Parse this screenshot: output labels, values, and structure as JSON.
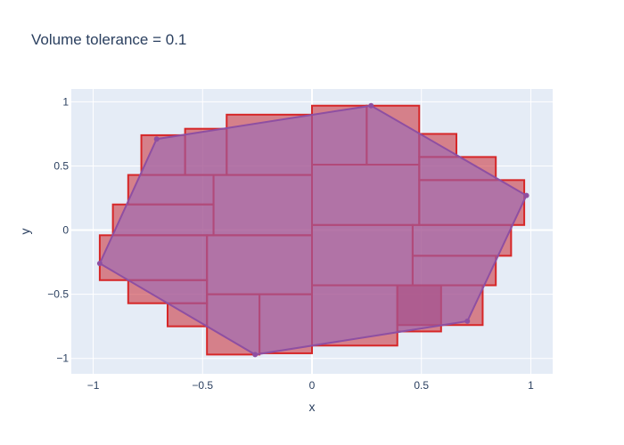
{
  "chart_data": {
    "type": "polygon-box-cover",
    "title": "Volume tolerance = 0.1",
    "xlabel": "x",
    "ylabel": "y",
    "xlim": [
      -1.1,
      1.1
    ],
    "ylim": [
      -1.12,
      1.1
    ],
    "xticks": [
      -1,
      -0.5,
      0,
      0.5,
      1
    ],
    "xtick_labels": [
      "−1",
      "−0.5",
      "0",
      "0.5",
      "1"
    ],
    "yticks": [
      -1,
      -0.5,
      0,
      0.5,
      1
    ],
    "ytick_labels": [
      "−1",
      "−0.5",
      "0",
      "0.5",
      "1"
    ],
    "grid": true,
    "colors": {
      "plot_bg": "#E5ECF6",
      "grid": "#ffffff",
      "box_fill": "rgba(200,40,50,0.55)",
      "box_stroke": "#d62728",
      "polygon_fill": "rgba(148,103,189,0.55)",
      "polygon_stroke": "#8e4fa2",
      "marker": "#8e4fa2"
    },
    "polygon": [
      [
        0.27,
        0.97
      ],
      [
        0.98,
        0.27
      ],
      [
        0.71,
        -0.71
      ],
      [
        -0.26,
        -0.97
      ],
      [
        -0.97,
        -0.26
      ],
      [
        -0.71,
        0.71
      ]
    ],
    "boxes": [
      [
        0,
        0.25,
        0.51,
        0.97
      ],
      [
        0.25,
        0.49,
        0.51,
        0.97
      ],
      [
        0.49,
        0.66,
        0.57,
        0.75
      ],
      [
        0.49,
        0.84,
        0.39,
        0.57
      ],
      [
        0.49,
        0.97,
        0.04,
        0.39
      ],
      [
        0.46,
        0.91,
        -0.2,
        0.04
      ],
      [
        0.46,
        0.84,
        -0.43,
        -0.2
      ],
      [
        0.39,
        0.78,
        -0.74,
        -0.43
      ],
      [
        0.39,
        0.59,
        -0.79,
        -0.43
      ],
      [
        0,
        0.39,
        -0.9,
        -0.43
      ],
      [
        0,
        0.46,
        -0.43,
        0.04
      ],
      [
        0,
        0.49,
        0.04,
        0.51
      ],
      [
        -0.24,
        0,
        -0.96,
        -0.5
      ],
      [
        -0.48,
        -0.24,
        -0.97,
        -0.5
      ],
      [
        -0.66,
        -0.48,
        -0.75,
        -0.57
      ],
      [
        -0.84,
        -0.48,
        -0.57,
        -0.39
      ],
      [
        -0.97,
        -0.48,
        -0.39,
        -0.04
      ],
      [
        -0.48,
        0,
        -0.5,
        -0.04
      ],
      [
        -0.91,
        -0.45,
        -0.04,
        0.2
      ],
      [
        -0.84,
        -0.45,
        0.2,
        0.43
      ],
      [
        -0.45,
        0,
        -0.04,
        0.43
      ],
      [
        -0.39,
        0,
        0.43,
        0.9
      ],
      [
        -0.58,
        -0.39,
        0.43,
        0.79
      ],
      [
        -0.78,
        -0.58,
        0.43,
        0.74
      ]
    ]
  }
}
